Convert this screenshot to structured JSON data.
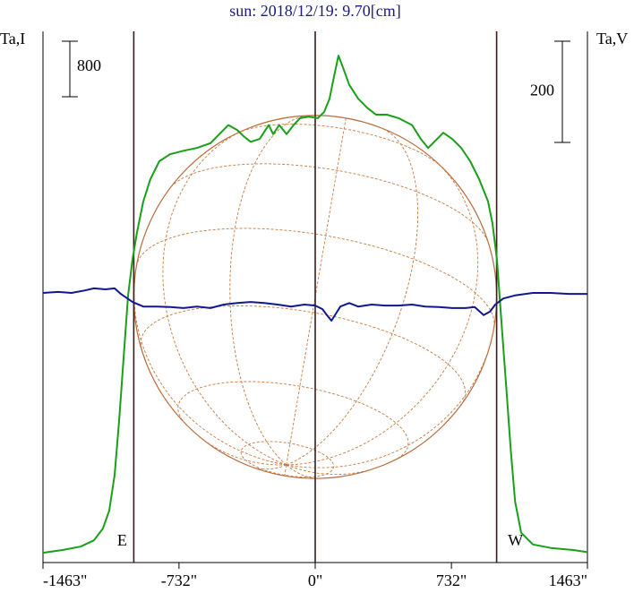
{
  "chart_data": {
    "type": "line",
    "title": "sun: 2018/12/19: 9.70[cm]",
    "ylabel": "Ta,I",
    "y2label": "Ta,V",
    "y_scale_bar": 800,
    "y2_scale_bar": 200,
    "xlim": [
      -1463,
      1463
    ],
    "xticks": [
      {
        "value": -1463,
        "label": "-1463\""
      },
      {
        "value": -732,
        "label": "-732\""
      },
      {
        "value": 0,
        "label": "0\""
      },
      {
        "value": 732,
        "label": "732\""
      },
      {
        "value": 1463,
        "label": "1463\""
      }
    ],
    "ylim": [
      0,
      7650
    ],
    "y2lim": [
      -525,
      525
    ],
    "vlines": [
      -975,
      0,
      975
    ],
    "limb_labels": [
      {
        "text": "E",
        "x": -975
      },
      {
        "text": "W",
        "x": 975
      }
    ],
    "series": [
      {
        "color": "#18a018",
        "axis": "y",
        "x": [
          -1463,
          -1358,
          -1261,
          -1189,
          -1141,
          -1107,
          -1078,
          -1054,
          -1030,
          -1006,
          -982,
          -958,
          -924,
          -886,
          -838,
          -780,
          -708,
          -636,
          -563,
          -515,
          -467,
          -419,
          -385,
          -347,
          -299,
          -250,
          -226,
          -193,
          -154,
          -116,
          -82,
          -34,
          14,
          48,
          77,
          101,
          125,
          149,
          183,
          231,
          279,
          327,
          385,
          448,
          520,
          568,
          607,
          640,
          688,
          737,
          785,
          833,
          881,
          929,
          953,
          977,
          1001,
          1026,
          1050,
          1074,
          1107,
          1170,
          1266,
          1387,
          1463
        ],
        "values": [
          140,
          180,
          230,
          320,
          490,
          750,
          1260,
          2040,
          2940,
          3840,
          4360,
          4750,
          5200,
          5520,
          5780,
          5880,
          5930,
          5970,
          6040,
          6170,
          6300,
          6230,
          6140,
          6060,
          6100,
          6300,
          6170,
          6300,
          6170,
          6300,
          6400,
          6420,
          6400,
          6490,
          6680,
          7000,
          7300,
          7130,
          6880,
          6680,
          6550,
          6450,
          6450,
          6400,
          6300,
          6100,
          5970,
          6060,
          6190,
          6100,
          5970,
          5780,
          5520,
          5200,
          4880,
          4360,
          3460,
          2550,
          1650,
          880,
          430,
          260,
          210,
          180,
          150
        ]
      },
      {
        "color": "#101890",
        "axis": "y2",
        "x": [
          -1463,
          -1382,
          -1310,
          -1237,
          -1189,
          -1127,
          -1078,
          -1045,
          -982,
          -924,
          -852,
          -780,
          -708,
          -636,
          -563,
          -491,
          -419,
          -347,
          -274,
          -202,
          -130,
          -58,
          0,
          39,
          63,
          87,
          111,
          135,
          183,
          231,
          303,
          376,
          448,
          520,
          592,
          664,
          737,
          809,
          857,
          905,
          939,
          968,
          1011,
          1074,
          1170,
          1266,
          1363,
          1463
        ],
        "values": [
          8,
          10,
          8,
          13,
          17,
          15,
          17,
          6,
          -10,
          -19,
          -19,
          -20,
          -22,
          -19,
          -22,
          -15,
          -12,
          -10,
          -12,
          -15,
          -19,
          -15,
          -17,
          -24,
          -36,
          -47,
          -33,
          -19,
          -12,
          -19,
          -15,
          -17,
          -17,
          -15,
          -19,
          -20,
          -22,
          -22,
          -20,
          -36,
          -29,
          -15,
          -3,
          3,
          8,
          8,
          6,
          6
        ]
      }
    ]
  }
}
